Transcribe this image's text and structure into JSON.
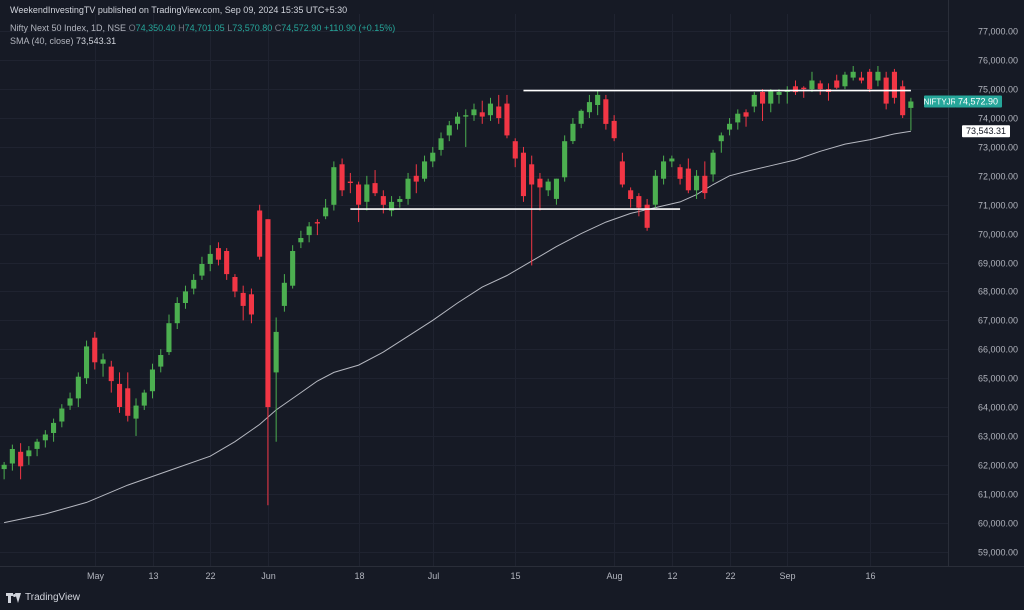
{
  "header": {
    "published": "WeekendInvestingTV published on TradingView.com, Sep 09, 2024 15:35 UTC+5:30",
    "symbol": "Nifty Next 50 Index, 1D, NSE",
    "open_label": "O",
    "open": "74,350.40",
    "high_label": "H",
    "high": "74,701.05",
    "low_label": "L",
    "low": "73,570.80",
    "close_label": "C",
    "close": "74,572.90",
    "change": "+110.90 (+0.15%)",
    "sma_label": "SMA (40, close)",
    "sma_value": "73,543.31"
  },
  "branding": {
    "logo_text": "TradingView"
  },
  "chart_data": {
    "type": "candlestick",
    "ylim": [
      58500,
      77600
    ],
    "y_ticks": [
      59000,
      60000,
      61000,
      62000,
      63000,
      64000,
      65000,
      66000,
      67000,
      68000,
      69000,
      70000,
      71000,
      72000,
      73000,
      74000,
      75000,
      76000,
      77000
    ],
    "y_tick_labels": [
      "59,000.00",
      "60,000.00",
      "61,000.00",
      "62,000.00",
      "63,000.00",
      "64,000.00",
      "65,000.00",
      "66,000.00",
      "67,000.00",
      "68,000.00",
      "69,000.00",
      "70,000.00",
      "71,000.00",
      "72,000.00",
      "73,000.00",
      "74,000.00",
      "75,000.00",
      "76,000.00",
      "77,000.00"
    ],
    "x_ticks": [
      {
        "label": "May",
        "x": 11
      },
      {
        "label": "13",
        "x": 18
      },
      {
        "label": "22",
        "x": 25
      },
      {
        "label": "Jun",
        "x": 32
      },
      {
        "label": "18",
        "x": 43
      },
      {
        "label": "Jul",
        "x": 52
      },
      {
        "label": "15",
        "x": 62
      },
      {
        "label": "Aug",
        "x": 74
      },
      {
        "label": "12",
        "x": 81
      },
      {
        "label": "22",
        "x": 88
      },
      {
        "label": "Sep",
        "x": 95
      },
      {
        "label": "16",
        "x": 105
      }
    ],
    "candles": [
      [
        0,
        61850,
        62100,
        61500,
        62000
      ],
      [
        1,
        62050,
        62700,
        61800,
        62550
      ],
      [
        2,
        62450,
        62750,
        61500,
        61950
      ],
      [
        3,
        62300,
        62650,
        62000,
        62500
      ],
      [
        4,
        62550,
        62900,
        62300,
        62800
      ],
      [
        5,
        62850,
        63200,
        62600,
        63050
      ],
      [
        6,
        63100,
        63600,
        62800,
        63450
      ],
      [
        7,
        63500,
        64100,
        63300,
        63950
      ],
      [
        8,
        64050,
        64500,
        63900,
        64300
      ],
      [
        9,
        64300,
        65200,
        64000,
        65050
      ],
      [
        10,
        65000,
        66300,
        64800,
        66100
      ],
      [
        11,
        66400,
        66600,
        65300,
        65550
      ],
      [
        12,
        65500,
        65850,
        65050,
        65650
      ],
      [
        13,
        65400,
        65600,
        64500,
        64900
      ],
      [
        14,
        64800,
        65200,
        63800,
        64000
      ],
      [
        15,
        64650,
        65200,
        63500,
        63700
      ],
      [
        16,
        63600,
        64300,
        63000,
        64050
      ],
      [
        17,
        64050,
        64600,
        63900,
        64500
      ],
      [
        18,
        64550,
        65500,
        64300,
        65300
      ],
      [
        19,
        65400,
        66000,
        65200,
        65800
      ],
      [
        20,
        65900,
        67200,
        65800,
        66900
      ],
      [
        21,
        66900,
        67800,
        66700,
        67600
      ],
      [
        22,
        67600,
        68200,
        67400,
        68000
      ],
      [
        23,
        68100,
        68600,
        67900,
        68400
      ],
      [
        24,
        68550,
        69200,
        68400,
        68950
      ],
      [
        25,
        68950,
        69600,
        68700,
        69300
      ],
      [
        26,
        69500,
        69700,
        68900,
        69100
      ],
      [
        27,
        69400,
        69500,
        68400,
        68600
      ],
      [
        28,
        68500,
        68600,
        67800,
        68000
      ],
      [
        29,
        67950,
        68200,
        67000,
        67500
      ],
      [
        30,
        67900,
        68100,
        66900,
        67200
      ],
      [
        31,
        70800,
        71000,
        69100,
        69200
      ],
      [
        32,
        70500,
        70500,
        60600,
        64000
      ],
      [
        33,
        65200,
        67100,
        62800,
        66600
      ],
      [
        34,
        67500,
        68600,
        67300,
        68300
      ],
      [
        35,
        68200,
        69600,
        68100,
        69400
      ],
      [
        36,
        69700,
        70100,
        69500,
        69850
      ],
      [
        37,
        69950,
        70400,
        69700,
        70250
      ],
      [
        38,
        70400,
        70500,
        69950,
        70350
      ],
      [
        39,
        70600,
        71200,
        70500,
        70900
      ],
      [
        40,
        71000,
        72500,
        70800,
        72300
      ],
      [
        41,
        72400,
        72600,
        71300,
        71500
      ],
      [
        42,
        71800,
        72100,
        71400,
        71750
      ],
      [
        43,
        71700,
        71800,
        70400,
        71000
      ],
      [
        44,
        71100,
        72000,
        70800,
        71700
      ],
      [
        45,
        71750,
        72200,
        71300,
        71400
      ],
      [
        46,
        71300,
        71500,
        70700,
        71000
      ],
      [
        47,
        70800,
        71300,
        70600,
        71100
      ],
      [
        48,
        71100,
        71300,
        70900,
        71200
      ],
      [
        49,
        71200,
        72100,
        71000,
        71900
      ],
      [
        50,
        72000,
        72400,
        71400,
        71800
      ],
      [
        51,
        71900,
        72700,
        71800,
        72500
      ],
      [
        52,
        72500,
        73000,
        72300,
        72800
      ],
      [
        53,
        72900,
        73500,
        72700,
        73300
      ],
      [
        54,
        73400,
        73900,
        73200,
        73750
      ],
      [
        55,
        73800,
        74200,
        73600,
        74050
      ],
      [
        56,
        74050,
        74300,
        73000,
        74100
      ],
      [
        57,
        74100,
        74500,
        73900,
        74300
      ],
      [
        58,
        74200,
        74600,
        73800,
        74050
      ],
      [
        59,
        74100,
        74700,
        73900,
        74500
      ],
      [
        60,
        74400,
        74800,
        73800,
        74000
      ],
      [
        61,
        74500,
        74800,
        73300,
        73400
      ],
      [
        62,
        73200,
        73300,
        72300,
        72600
      ],
      [
        63,
        72800,
        73000,
        71100,
        71300
      ],
      [
        64,
        72400,
        72700,
        68900,
        71700
      ],
      [
        65,
        71900,
        72100,
        70800,
        71600
      ],
      [
        66,
        71500,
        71900,
        71300,
        71800
      ],
      [
        67,
        71200,
        71900,
        71000,
        71900
      ],
      [
        68,
        71950,
        73400,
        71800,
        73200
      ],
      [
        69,
        73200,
        74000,
        73100,
        73800
      ],
      [
        70,
        73800,
        74300,
        73650,
        74250
      ],
      [
        71,
        74200,
        74800,
        74000,
        74550
      ],
      [
        72,
        74450,
        74950,
        74100,
        74800
      ],
      [
        73,
        74650,
        74800,
        73600,
        73800
      ],
      [
        74,
        73900,
        74100,
        73200,
        73300
      ],
      [
        75,
        72500,
        72800,
        71600,
        71700
      ],
      [
        76,
        71500,
        71600,
        70900,
        71200
      ],
      [
        77,
        71300,
        71400,
        70600,
        70900
      ],
      [
        78,
        71000,
        71200,
        70100,
        70200
      ],
      [
        79,
        71000,
        72200,
        70900,
        72000
      ],
      [
        80,
        71900,
        72700,
        71700,
        72500
      ],
      [
        81,
        72500,
        72700,
        72300,
        72600
      ],
      [
        82,
        72300,
        72400,
        71700,
        71900
      ],
      [
        83,
        72250,
        72600,
        71400,
        71500
      ],
      [
        84,
        71500,
        72200,
        71200,
        72000
      ],
      [
        85,
        72000,
        72500,
        71200,
        71400
      ],
      [
        86,
        72050,
        72900,
        71800,
        72800
      ],
      [
        87,
        73200,
        73500,
        72800,
        73400
      ],
      [
        88,
        73600,
        74000,
        73400,
        73800
      ],
      [
        89,
        73850,
        74300,
        73600,
        74150
      ],
      [
        90,
        74200,
        74300,
        73700,
        74050
      ],
      [
        91,
        74400,
        74900,
        74200,
        74800
      ],
      [
        92,
        74900,
        75000,
        73900,
        74500
      ],
      [
        93,
        74500,
        75000,
        74200,
        74950
      ],
      [
        94,
        74800,
        75000,
        74500,
        74900
      ],
      [
        95,
        74900,
        75100,
        74500,
        74950
      ],
      [
        96,
        75100,
        75300,
        74800,
        74900
      ],
      [
        97,
        75050,
        75100,
        74700,
        75000
      ],
      [
        98,
        75000,
        75600,
        74900,
        75300
      ],
      [
        99,
        75200,
        75300,
        74800,
        75000
      ],
      [
        100,
        75000,
        75200,
        74600,
        74900
      ],
      [
        101,
        75300,
        75500,
        75000,
        75050
      ],
      [
        102,
        75100,
        75600,
        75000,
        75500
      ],
      [
        103,
        75400,
        75800,
        75300,
        75600
      ],
      [
        104,
        75400,
        75600,
        75200,
        75300
      ],
      [
        105,
        75600,
        75700,
        74900,
        75000
      ],
      [
        106,
        75300,
        75800,
        75100,
        75600
      ],
      [
        107,
        75400,
        75600,
        74300,
        74500
      ],
      [
        108,
        75600,
        75700,
        74500,
        74700
      ],
      [
        109,
        75100,
        75300,
        74000,
        74100
      ],
      [
        110,
        74350,
        74701,
        73571,
        74573
      ]
    ],
    "sma": {
      "name": "SMA (40, close)",
      "points": [
        [
          0,
          60000
        ],
        [
          5,
          60300
        ],
        [
          10,
          60700
        ],
        [
          15,
          61300
        ],
        [
          20,
          61800
        ],
        [
          25,
          62300
        ],
        [
          28,
          62800
        ],
        [
          31,
          63400
        ],
        [
          33,
          63900
        ],
        [
          36,
          64500
        ],
        [
          38,
          64900
        ],
        [
          40,
          65200
        ],
        [
          43,
          65450
        ],
        [
          46,
          65900
        ],
        [
          49,
          66450
        ],
        [
          52,
          67000
        ],
        [
          55,
          67600
        ],
        [
          58,
          68150
        ],
        [
          61,
          68550
        ],
        [
          64,
          69050
        ],
        [
          67,
          69550
        ],
        [
          70,
          70000
        ],
        [
          73,
          70400
        ],
        [
          76,
          70700
        ],
        [
          79,
          70900
        ],
        [
          82,
          71100
        ],
        [
          84,
          71350
        ],
        [
          86,
          71700
        ],
        [
          88,
          72000
        ],
        [
          90,
          72150
        ],
        [
          93,
          72350
        ],
        [
          96,
          72550
        ],
        [
          99,
          72850
        ],
        [
          102,
          73100
        ],
        [
          105,
          73250
        ],
        [
          108,
          73450
        ],
        [
          110,
          73543
        ]
      ]
    },
    "lines": [
      {
        "name": "resistance",
        "y": 74950,
        "x_from": 63,
        "x_to": 110
      },
      {
        "name": "support",
        "y": 70850,
        "x_from": 42,
        "x_to": 82
      }
    ],
    "price_labels": [
      {
        "name": "NIFTYJR",
        "value": "74,572.90",
        "y": 74573,
        "color": "#26a69a"
      },
      {
        "name": "sma",
        "value": "73,543.31",
        "y": 73543,
        "color": "#ffffff"
      }
    ],
    "x_range": [
      -0.5,
      114.5
    ],
    "colors": {
      "up": "#26a69a",
      "down": "#ef5350",
      "up_body": "#4caf50",
      "down_body": "#f23645",
      "sma": "#d1d4dc",
      "line": "#ffffff"
    }
  }
}
